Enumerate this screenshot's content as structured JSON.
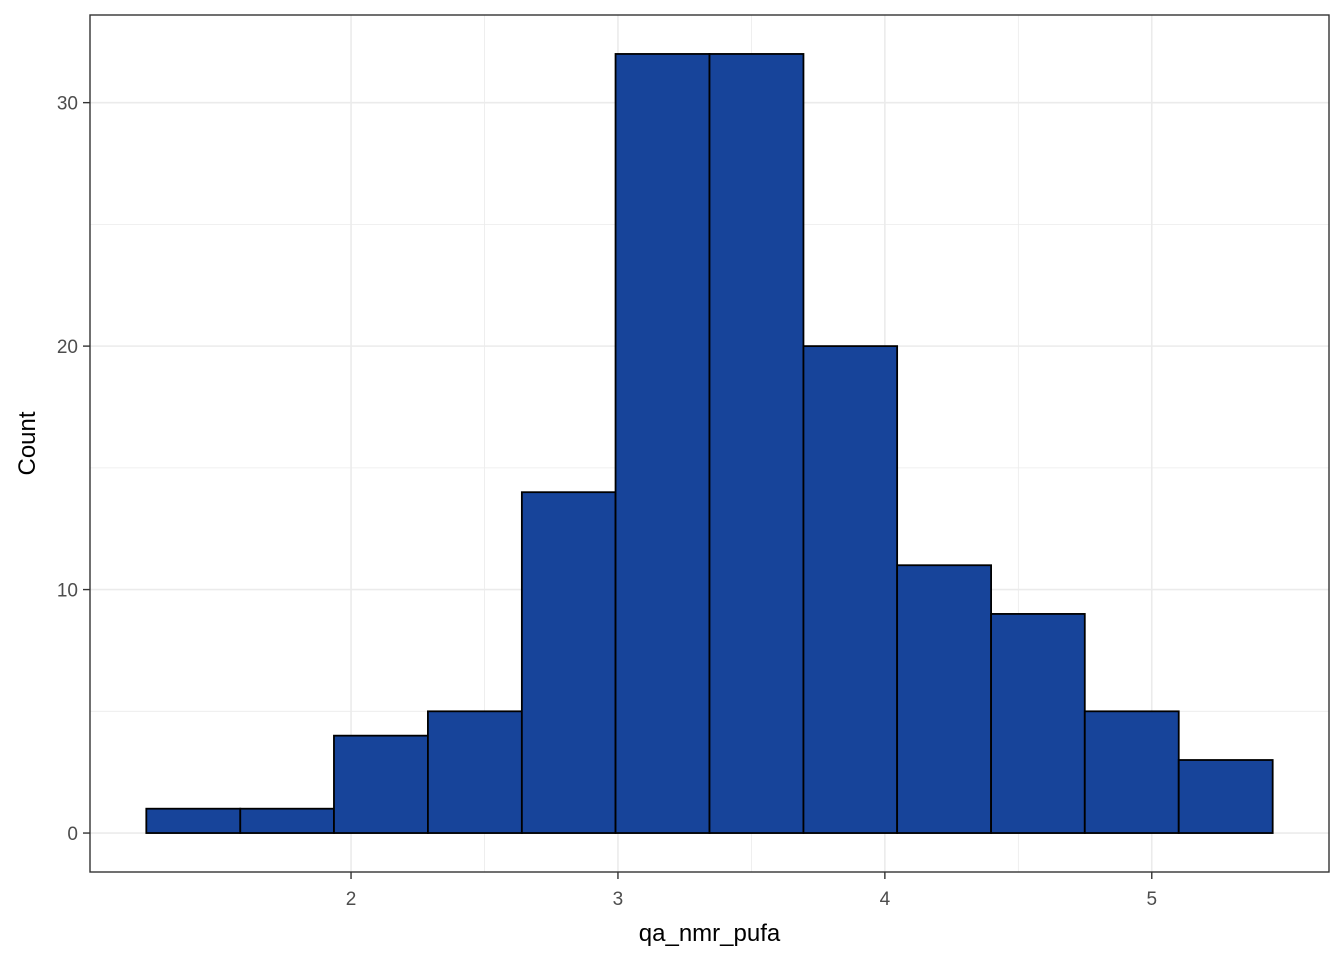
{
  "chart_data": {
    "type": "bar",
    "subtype": "histogram",
    "title": "",
    "xlabel": "qa_nmr_pufa",
    "ylabel": "Count",
    "bins": [
      {
        "x0": 1.233,
        "x1": 1.585,
        "count": 1
      },
      {
        "x0": 1.585,
        "x1": 1.936,
        "count": 1
      },
      {
        "x0": 1.936,
        "x1": 2.288,
        "count": 4
      },
      {
        "x0": 2.288,
        "x1": 2.64,
        "count": 5
      },
      {
        "x0": 2.64,
        "x1": 2.991,
        "count": 14
      },
      {
        "x0": 2.991,
        "x1": 3.343,
        "count": 32
      },
      {
        "x0": 3.343,
        "x1": 3.695,
        "count": 32
      },
      {
        "x0": 3.695,
        "x1": 4.046,
        "count": 20
      },
      {
        "x0": 4.046,
        "x1": 4.398,
        "count": 11
      },
      {
        "x0": 4.398,
        "x1": 4.749,
        "count": 9
      },
      {
        "x0": 4.749,
        "x1": 5.101,
        "count": 5
      },
      {
        "x0": 5.101,
        "x1": 5.453,
        "count": 3
      }
    ],
    "xlim": [
      1.022,
      5.664
    ],
    "ylim": [
      -1.6,
      33.6
    ],
    "x_ticks": [
      2,
      3,
      4,
      5
    ],
    "x_tick_labels": [
      "2",
      "3",
      "4",
      "5"
    ],
    "y_ticks": [
      0,
      10,
      20,
      30
    ],
    "y_tick_labels": [
      "0",
      "10",
      "20",
      "30"
    ],
    "x_minor": [
      2.5,
      3.5,
      4.5
    ],
    "y_minor": [
      5,
      15,
      25
    ],
    "grid": true,
    "legend": "none",
    "colors": {
      "bar_fill": "#17449a",
      "bar_outline": "#000000",
      "grid": "#ebebeb",
      "panel_border": "#333333"
    }
  }
}
